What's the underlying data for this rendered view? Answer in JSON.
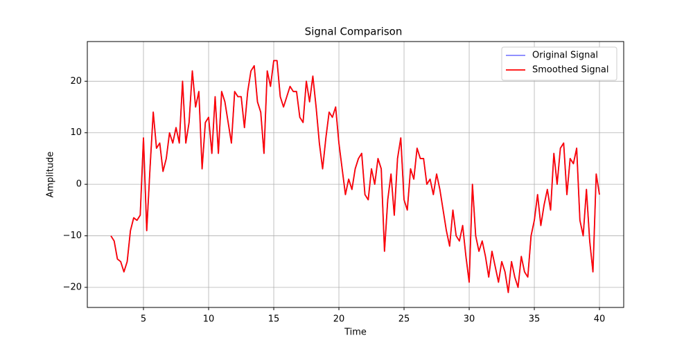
{
  "chart_data": {
    "type": "line",
    "title": "Signal Comparison",
    "xlabel": "Time",
    "ylabel": "Amplitude",
    "x": [
      2.5,
      2.75,
      3,
      3.25,
      3.5,
      3.75,
      4,
      4.25,
      4.5,
      4.75,
      5,
      5.25,
      5.5,
      5.75,
      6,
      6.25,
      6.5,
      6.75,
      7,
      7.25,
      7.5,
      7.75,
      8,
      8.25,
      8.5,
      8.75,
      9,
      9.25,
      9.5,
      9.75,
      10,
      10.25,
      10.5,
      10.75,
      11,
      11.25,
      11.5,
      11.75,
      12,
      12.25,
      12.5,
      12.75,
      13,
      13.25,
      13.5,
      13.75,
      14,
      14.25,
      14.5,
      14.75,
      15,
      15.25,
      15.5,
      15.75,
      16,
      16.25,
      16.5,
      16.75,
      17,
      17.25,
      17.5,
      17.75,
      18,
      18.25,
      18.5,
      18.75,
      19,
      19.25,
      19.5,
      19.75,
      20,
      20.25,
      20.5,
      20.75,
      21,
      21.25,
      21.5,
      21.75,
      22,
      22.25,
      22.5,
      22.75,
      23,
      23.25,
      23.5,
      23.75,
      24,
      24.25,
      24.5,
      24.75,
      25,
      25.25,
      25.5,
      25.75,
      26,
      26.25,
      26.5,
      26.75,
      27,
      27.25,
      27.5,
      27.75,
      28,
      28.25,
      28.5,
      28.75,
      29,
      29.25,
      29.5,
      29.75,
      30,
      30.25,
      30.5,
      30.75,
      31,
      31.25,
      31.5,
      31.75,
      32,
      32.25,
      32.5,
      32.75,
      33,
      33.25,
      33.5,
      33.75,
      34,
      34.25,
      34.5,
      34.75,
      35,
      35.25,
      35.5,
      35.75,
      36,
      36.25,
      36.5,
      36.75,
      37,
      37.25,
      37.5,
      37.75,
      38,
      38.25,
      38.5,
      38.75,
      39,
      39.25,
      39.5,
      39.75,
      40
    ],
    "series": [
      {
        "name": "Original Signal",
        "color": "#8080ff",
        "values": [
          -10,
          -11,
          -14.5,
          -15,
          -17,
          -15,
          -9,
          -6.5,
          -7,
          -6,
          9,
          -9,
          3,
          14,
          7,
          8,
          2.5,
          5,
          10,
          8,
          11,
          8,
          20,
          8,
          12,
          22,
          15,
          18,
          3,
          12,
          13,
          6,
          17,
          6,
          18,
          16,
          12,
          8,
          18,
          17,
          17,
          11,
          18,
          22,
          23,
          16,
          14,
          6,
          22,
          19,
          24,
          24,
          17,
          15,
          17,
          19,
          18,
          18,
          13,
          12,
          20,
          16,
          21,
          15,
          8,
          3,
          9,
          14,
          13,
          15,
          8,
          3,
          -2,
          1,
          -1,
          3,
          5,
          6,
          -2,
          -3,
          3,
          0,
          5,
          3,
          -13,
          -3,
          2,
          -6,
          5,
          9,
          -3,
          -5,
          3,
          1,
          7,
          5,
          5,
          0,
          1,
          -2,
          2,
          -1,
          -5,
          -9,
          -12,
          -5,
          -10,
          -11,
          -8,
          -14,
          -19,
          0,
          -10,
          -13,
          -11,
          -14,
          -18,
          -13,
          -16,
          -19,
          -15,
          -17,
          -21,
          -15,
          -18,
          -20,
          -14,
          -17,
          -18,
          -10,
          -7,
          -2,
          -8,
          -4,
          -1,
          -5,
          6,
          0,
          7,
          8,
          -2,
          5,
          4,
          7,
          -7,
          -10,
          -1,
          -11,
          -17,
          2,
          -2
        ]
      },
      {
        "name": "Smoothed Signal",
        "color": "#ff0000",
        "values": [
          -10,
          -11,
          -14.5,
          -15,
          -17,
          -15,
          -9,
          -6.5,
          -7,
          -6,
          9,
          -9,
          3,
          14,
          7,
          8,
          2.5,
          5,
          10,
          8,
          11,
          8,
          20,
          8,
          12,
          22,
          15,
          18,
          3,
          12,
          13,
          6,
          17,
          6,
          18,
          16,
          12,
          8,
          18,
          17,
          17,
          11,
          18,
          22,
          23,
          16,
          14,
          6,
          22,
          19,
          24,
          24,
          17,
          15,
          17,
          19,
          18,
          18,
          13,
          12,
          20,
          16,
          21,
          15,
          8,
          3,
          9,
          14,
          13,
          15,
          8,
          3,
          -2,
          1,
          -1,
          3,
          5,
          6,
          -2,
          -3,
          3,
          0,
          5,
          3,
          -13,
          -3,
          2,
          -6,
          5,
          9,
          -3,
          -5,
          3,
          1,
          7,
          5,
          5,
          0,
          1,
          -2,
          2,
          -1,
          -5,
          -9,
          -12,
          -5,
          -10,
          -11,
          -8,
          -14,
          -19,
          0,
          -10,
          -13,
          -11,
          -14,
          -18,
          -13,
          -16,
          -19,
          -15,
          -17,
          -21,
          -15,
          -18,
          -20,
          -14,
          -17,
          -18,
          -10,
          -7,
          -2,
          -8,
          -4,
          -1,
          -5,
          6,
          0,
          7,
          8,
          -2,
          5,
          4,
          7,
          -7,
          -10,
          -1,
          -11,
          -17,
          2,
          -2
        ]
      }
    ],
    "xlim": [
      0.69,
      41.86
    ],
    "ylim": [
      -23.9,
      27.7
    ],
    "xticks": [
      5,
      10,
      15,
      20,
      25,
      30,
      35,
      40
    ],
    "yticks": [
      {
        "value": -20,
        "label": "−20"
      },
      {
        "value": -10,
        "label": "−10"
      },
      0,
      10,
      20
    ],
    "grid": true,
    "legend": "upper right"
  }
}
